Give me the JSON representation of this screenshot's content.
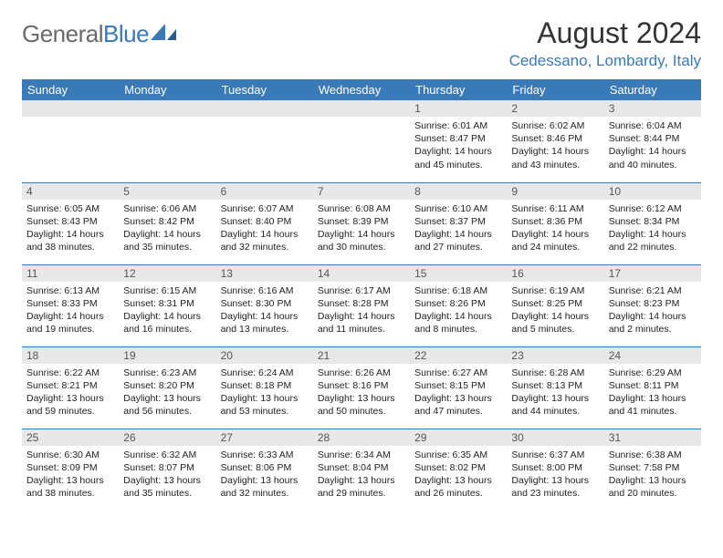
{
  "header": {
    "logo_general": "General",
    "logo_blue": "Blue",
    "month_title": "August 2024",
    "location": "Cedessano, Lombardy, Italy"
  },
  "colors": {
    "brand_blue": "#3a7ab8",
    "logo_gray": "#6a6a6a",
    "daynum_bg": "#e8e8e8",
    "text": "#222222",
    "bg": "#ffffff"
  },
  "weekdays": [
    "Sunday",
    "Monday",
    "Tuesday",
    "Wednesday",
    "Thursday",
    "Friday",
    "Saturday"
  ],
  "weeks": [
    [
      null,
      null,
      null,
      null,
      {
        "n": "1",
        "sr": "6:01 AM",
        "ss": "8:47 PM",
        "dl": "14 hours and 45 minutes."
      },
      {
        "n": "2",
        "sr": "6:02 AM",
        "ss": "8:46 PM",
        "dl": "14 hours and 43 minutes."
      },
      {
        "n": "3",
        "sr": "6:04 AM",
        "ss": "8:44 PM",
        "dl": "14 hours and 40 minutes."
      }
    ],
    [
      {
        "n": "4",
        "sr": "6:05 AM",
        "ss": "8:43 PM",
        "dl": "14 hours and 38 minutes."
      },
      {
        "n": "5",
        "sr": "6:06 AM",
        "ss": "8:42 PM",
        "dl": "14 hours and 35 minutes."
      },
      {
        "n": "6",
        "sr": "6:07 AM",
        "ss": "8:40 PM",
        "dl": "14 hours and 32 minutes."
      },
      {
        "n": "7",
        "sr": "6:08 AM",
        "ss": "8:39 PM",
        "dl": "14 hours and 30 minutes."
      },
      {
        "n": "8",
        "sr": "6:10 AM",
        "ss": "8:37 PM",
        "dl": "14 hours and 27 minutes."
      },
      {
        "n": "9",
        "sr": "6:11 AM",
        "ss": "8:36 PM",
        "dl": "14 hours and 24 minutes."
      },
      {
        "n": "10",
        "sr": "6:12 AM",
        "ss": "8:34 PM",
        "dl": "14 hours and 22 minutes."
      }
    ],
    [
      {
        "n": "11",
        "sr": "6:13 AM",
        "ss": "8:33 PM",
        "dl": "14 hours and 19 minutes."
      },
      {
        "n": "12",
        "sr": "6:15 AM",
        "ss": "8:31 PM",
        "dl": "14 hours and 16 minutes."
      },
      {
        "n": "13",
        "sr": "6:16 AM",
        "ss": "8:30 PM",
        "dl": "14 hours and 13 minutes."
      },
      {
        "n": "14",
        "sr": "6:17 AM",
        "ss": "8:28 PM",
        "dl": "14 hours and 11 minutes."
      },
      {
        "n": "15",
        "sr": "6:18 AM",
        "ss": "8:26 PM",
        "dl": "14 hours and 8 minutes."
      },
      {
        "n": "16",
        "sr": "6:19 AM",
        "ss": "8:25 PM",
        "dl": "14 hours and 5 minutes."
      },
      {
        "n": "17",
        "sr": "6:21 AM",
        "ss": "8:23 PM",
        "dl": "14 hours and 2 minutes."
      }
    ],
    [
      {
        "n": "18",
        "sr": "6:22 AM",
        "ss": "8:21 PM",
        "dl": "13 hours and 59 minutes."
      },
      {
        "n": "19",
        "sr": "6:23 AM",
        "ss": "8:20 PM",
        "dl": "13 hours and 56 minutes."
      },
      {
        "n": "20",
        "sr": "6:24 AM",
        "ss": "8:18 PM",
        "dl": "13 hours and 53 minutes."
      },
      {
        "n": "21",
        "sr": "6:26 AM",
        "ss": "8:16 PM",
        "dl": "13 hours and 50 minutes."
      },
      {
        "n": "22",
        "sr": "6:27 AM",
        "ss": "8:15 PM",
        "dl": "13 hours and 47 minutes."
      },
      {
        "n": "23",
        "sr": "6:28 AM",
        "ss": "8:13 PM",
        "dl": "13 hours and 44 minutes."
      },
      {
        "n": "24",
        "sr": "6:29 AM",
        "ss": "8:11 PM",
        "dl": "13 hours and 41 minutes."
      }
    ],
    [
      {
        "n": "25",
        "sr": "6:30 AM",
        "ss": "8:09 PM",
        "dl": "13 hours and 38 minutes."
      },
      {
        "n": "26",
        "sr": "6:32 AM",
        "ss": "8:07 PM",
        "dl": "13 hours and 35 minutes."
      },
      {
        "n": "27",
        "sr": "6:33 AM",
        "ss": "8:06 PM",
        "dl": "13 hours and 32 minutes."
      },
      {
        "n": "28",
        "sr": "6:34 AM",
        "ss": "8:04 PM",
        "dl": "13 hours and 29 minutes."
      },
      {
        "n": "29",
        "sr": "6:35 AM",
        "ss": "8:02 PM",
        "dl": "13 hours and 26 minutes."
      },
      {
        "n": "30",
        "sr": "6:37 AM",
        "ss": "8:00 PM",
        "dl": "13 hours and 23 minutes."
      },
      {
        "n": "31",
        "sr": "6:38 AM",
        "ss": "7:58 PM",
        "dl": "13 hours and 20 minutes."
      }
    ]
  ],
  "labels": {
    "sunrise": "Sunrise:",
    "sunset": "Sunset:",
    "daylight": "Daylight:"
  }
}
